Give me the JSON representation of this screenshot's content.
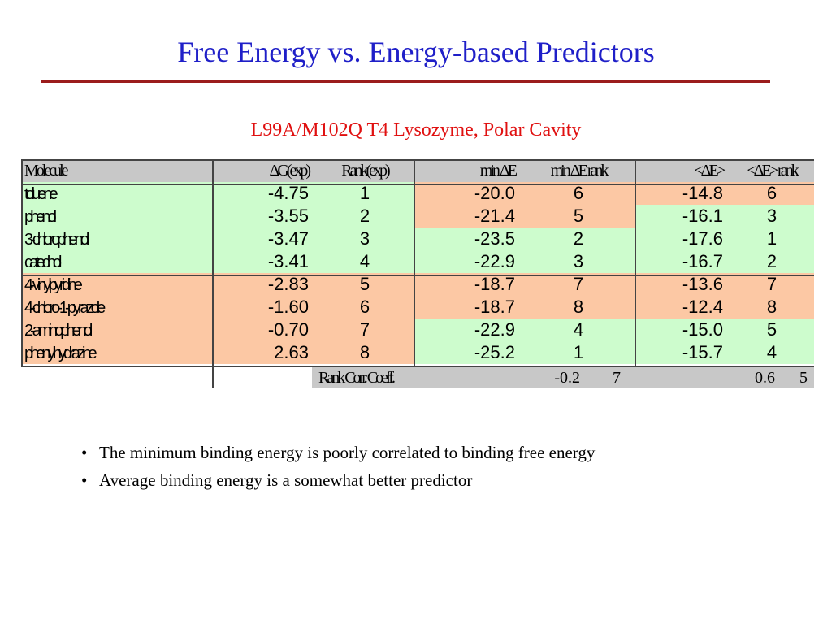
{
  "slide": {
    "title": "Free Energy vs. Energy-based Predictors",
    "subtitle": "L99A/M102Q T4 Lysozyme, Polar Cavity"
  },
  "table": {
    "headers": [
      "Molecule",
      "ΔG(exp)",
      "Rank(exp)",
      "min ΔE",
      "min ΔE rank",
      "<ΔE>",
      "<ΔE> rank"
    ],
    "rows": [
      {
        "name": "toluene",
        "dg": "-4.75",
        "rank": "1",
        "min": "-20.0",
        "min_rank": "6",
        "avg": "-14.8",
        "avg_rank": "6",
        "shade": [
          "g",
          "o",
          "o"
        ]
      },
      {
        "name": "phenol",
        "dg": "-3.55",
        "rank": "2",
        "min": "-21.4",
        "min_rank": "5",
        "avg": "-16.1",
        "avg_rank": "3",
        "shade": [
          "g",
          "o",
          "g"
        ]
      },
      {
        "name": "3-chlorophenol",
        "dg": "-3.47",
        "rank": "3",
        "min": "-23.5",
        "min_rank": "2",
        "avg": "-17.6",
        "avg_rank": "1",
        "shade": [
          "g",
          "g",
          "g"
        ]
      },
      {
        "name": "catechol",
        "dg": "-3.41",
        "rank": "4",
        "min": "-22.9",
        "min_rank": "3",
        "avg": "-16.7",
        "avg_rank": "2",
        "shade": [
          "g",
          "g",
          "g"
        ]
      },
      {
        "name": "4-vinylpyridine",
        "dg": "-2.83",
        "rank": "5",
        "min": "-18.7",
        "min_rank": "7",
        "avg": "-13.6",
        "avg_rank": "7",
        "shade": [
          "o",
          "o",
          "o"
        ]
      },
      {
        "name": "4-chloro-1-pyrazole",
        "dg": "-1.60",
        "rank": "6",
        "min": "-18.7",
        "min_rank": "8",
        "avg": "-12.4",
        "avg_rank": "8",
        "shade": [
          "o",
          "o",
          "o"
        ]
      },
      {
        "name": "2-aminophenol",
        "dg": "-0.70",
        "rank": "7",
        "min": "-22.9",
        "min_rank": "4",
        "avg": "-15.0",
        "avg_rank": "5",
        "shade": [
          "o",
          "g",
          "g"
        ]
      },
      {
        "name": "phenylhydrazine",
        "dg": "2.63",
        "rank": "8",
        "min": "-25.2",
        "min_rank": "1",
        "avg": "-15.7",
        "avg_rank": "4",
        "shade": [
          "o",
          "g",
          "g"
        ]
      }
    ],
    "correlation": {
      "label": "Rank Corr. Coeff.",
      "min_value": "-0.2",
      "min_trail": "7",
      "avg_value": "0.6",
      "avg_trail": "5"
    }
  },
  "bullets": [
    "The minimum binding energy is poorly correlated to binding free energy",
    "Average binding energy is a somewhat better predictor"
  ],
  "colors": {
    "title": "#1f1fc8",
    "subtitle": "#e01010",
    "rule": "#9b1c1c",
    "good": "#cdfccd",
    "poor": "#fcc8a4",
    "header": "#c8c8c8"
  }
}
